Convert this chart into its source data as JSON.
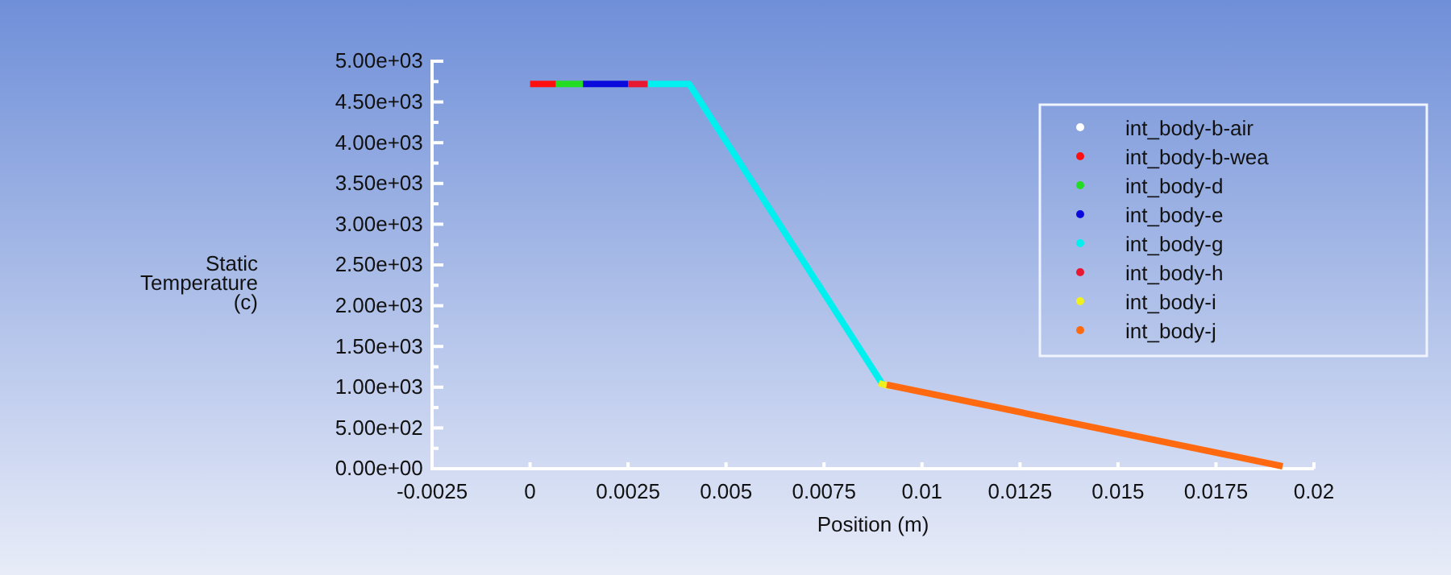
{
  "chart_data": {
    "type": "line",
    "xlabel": "Position (m)",
    "ylabel": "Static\nTemperature\n(c)",
    "xlim": [
      -0.0025,
      0.02
    ],
    "xticks": [
      -0.0025,
      0,
      0.0025,
      0.005,
      0.0075,
      0.01,
      0.0125,
      0.015,
      0.0175,
      0.02
    ],
    "ylim": [
      0,
      5000
    ],
    "yticks": [
      {
        "value": 0,
        "label": "0.00e+00"
      },
      {
        "value": 250,
        "label": null
      },
      {
        "value": 500,
        "label": "5.00e+02"
      },
      {
        "value": 750,
        "label": null
      },
      {
        "value": 1000,
        "label": "1.00e+03"
      },
      {
        "value": 1250,
        "label": null
      },
      {
        "value": 1500,
        "label": "1.50e+03"
      },
      {
        "value": 1750,
        "label": null
      },
      {
        "value": 2000,
        "label": "2.00e+03"
      },
      {
        "value": 2250,
        "label": null
      },
      {
        "value": 2500,
        "label": "2.50e+03"
      },
      {
        "value": 2750,
        "label": null
      },
      {
        "value": 3000,
        "label": "3.00e+03"
      },
      {
        "value": 3250,
        "label": null
      },
      {
        "value": 3500,
        "label": "3.50e+03"
      },
      {
        "value": 3750,
        "label": null
      },
      {
        "value": 4000,
        "label": "4.00e+03"
      },
      {
        "value": 4250,
        "label": null
      },
      {
        "value": 4500,
        "label": "4.50e+03"
      },
      {
        "value": 4750,
        "label": null
      },
      {
        "value": 5000,
        "label": "5.00e+03"
      }
    ],
    "legend": "top right",
    "marker": "none",
    "line_style": "solid",
    "grid": false,
    "series": [
      {
        "name": "int_body-b-air",
        "color": "#ffffff"
      },
      {
        "name": "int_body-b-wea",
        "color": "#ff1010",
        "x": [
          0,
          0.00066
        ],
        "values": [
          4720,
          4720
        ]
      },
      {
        "name": "int_body-d",
        "color": "#22dd22",
        "x": [
          0.00066,
          0.00135
        ],
        "values": [
          4720,
          4720
        ]
      },
      {
        "name": "int_body-e",
        "color": "#0a0adc",
        "x": [
          0.00135,
          0.0025
        ],
        "values": [
          4720,
          4720
        ]
      },
      {
        "name": "int_body-g",
        "color": "#00f0f0",
        "x": [
          0.003,
          0.00406,
          0.009
        ],
        "values": [
          4720,
          4720,
          1030
        ]
      },
      {
        "name": "int_body-h",
        "color": "#e81830",
        "x": [
          0.0025,
          0.003
        ],
        "values": [
          4720,
          4720
        ]
      },
      {
        "name": "int_body-i",
        "color": "#f0f020",
        "x": [
          0.0089,
          0.0092
        ],
        "values": [
          1050,
          1010
        ]
      },
      {
        "name": "int_body-j",
        "color": "#ff6a10",
        "x": [
          0.0091,
          0.0192
        ],
        "values": [
          1030,
          30
        ]
      }
    ]
  }
}
